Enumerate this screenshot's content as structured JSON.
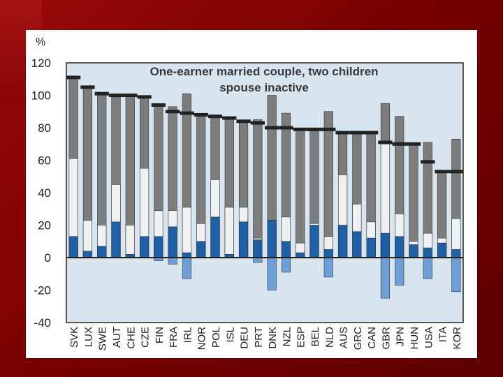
{
  "colors": {
    "slide_bg": "#8a0000",
    "plot_bg": "#d8e4ee",
    "dark_gray": "#7d7d7d",
    "light_bar": "#eef0f2",
    "blue": "#1f5fa6",
    "light_blue": "#6f9fd8",
    "marker": "#222222"
  },
  "chart_data": {
    "type": "bar",
    "title_line1": "One-earner married couple, two children",
    "title_line2": "spouse inactive",
    "ylabel": "%",
    "ylim": [
      -40,
      120
    ],
    "yticks": [
      "120",
      "100",
      "80",
      "60",
      "40",
      "20",
      "0",
      "-20",
      "-40"
    ],
    "grid": false,
    "categories": [
      "SVK",
      "LUX",
      "SWE",
      "AUT",
      "CHE",
      "CZE",
      "FIN",
      "FRA",
      "IRL",
      "NOR",
      "POL",
      "ISL",
      "DEU",
      "PRT",
      "DNK",
      "NZL",
      "ESP",
      "BEL",
      "NLD",
      "AUS",
      "GRC",
      "CAN",
      "GBR",
      "JPN",
      "HUN",
      "USA",
      "ITA",
      "KOR"
    ],
    "series": [
      {
        "component": "dark gray",
        "top": [
          111,
          105,
          101,
          99,
          100,
          99,
          94,
          93,
          101,
          87,
          88,
          86,
          84,
          85,
          100,
          89,
          79,
          78,
          90,
          77,
          77,
          77,
          95,
          87,
          70,
          71,
          53,
          73
        ]
      },
      {
        "component": "light",
        "top": [
          61,
          23,
          20,
          45,
          20,
          55,
          29,
          29,
          31,
          21,
          48,
          31,
          31,
          12,
          23,
          25,
          9,
          21,
          13,
          51,
          33,
          22,
          70,
          27,
          10,
          15,
          12,
          24
        ]
      },
      {
        "component": "blue",
        "top": [
          13,
          4,
          7,
          22,
          2,
          13,
          13,
          19,
          3,
          10,
          25,
          2,
          22,
          11,
          23,
          10,
          3,
          20,
          5,
          20,
          16,
          12,
          15,
          13,
          8,
          6,
          9,
          5
        ]
      },
      {
        "component": "below zero",
        "bottom": [
          0,
          0,
          0,
          0,
          0,
          0,
          -2,
          -4,
          -13,
          0,
          0,
          0,
          0,
          -3,
          -20,
          -9,
          0,
          0,
          -12,
          0,
          0,
          0,
          -25,
          -17,
          0,
          -13,
          0,
          -21
        ]
      },
      {
        "component": "marker",
        "value": [
          111,
          105,
          101,
          100,
          100,
          99,
          94,
          90,
          89,
          88,
          87,
          86,
          84,
          83,
          80,
          80,
          79,
          79,
          79,
          77,
          77,
          77,
          71,
          70,
          70,
          59,
          53,
          53
        ]
      }
    ]
  }
}
